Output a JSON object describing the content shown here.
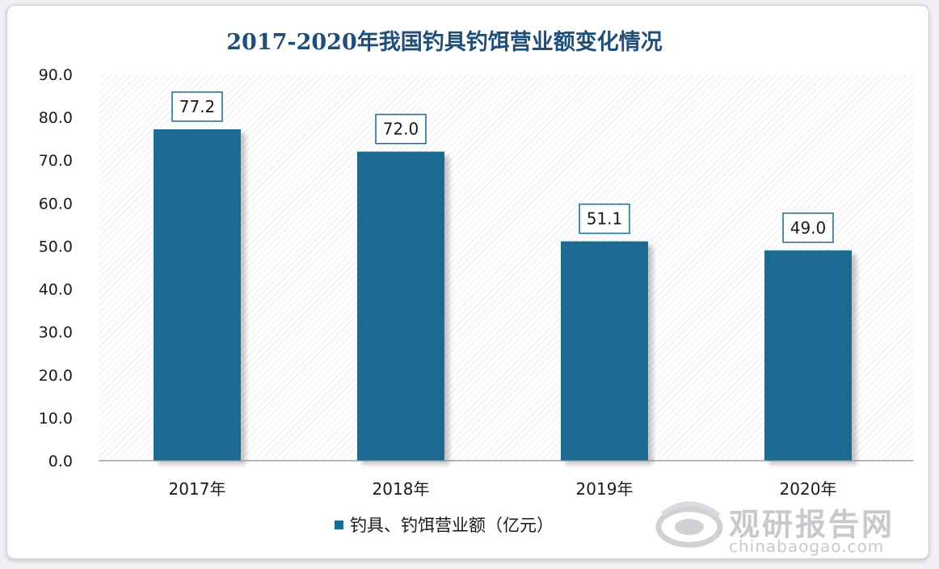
{
  "chart_data": {
    "type": "bar",
    "title": "2017-2020年我国钓具钓饵营业额变化情况",
    "categories": [
      "2017年",
      "2018年",
      "2019年",
      "2020年"
    ],
    "series": [
      {
        "name": "钓具、钓饵营业额（亿元）",
        "values": [
          77.2,
          72.0,
          51.1,
          49.0
        ]
      }
    ],
    "value_labels": [
      "77.2",
      "72.0",
      "51.1",
      "49.0"
    ],
    "ylim": [
      0,
      90
    ],
    "yticks": [
      "0.0",
      "10.0",
      "20.0",
      "30.0",
      "40.0",
      "50.0",
      "60.0",
      "70.0",
      "80.0",
      "90.0"
    ],
    "xlabel": "",
    "ylabel": "",
    "legend_position": "bottom",
    "bar_color": "#1a6a92",
    "label_border_color": "#1a6a92"
  },
  "watermark": {
    "brand_cn": "观研报告网",
    "brand_en": "chinabaogao.com"
  }
}
